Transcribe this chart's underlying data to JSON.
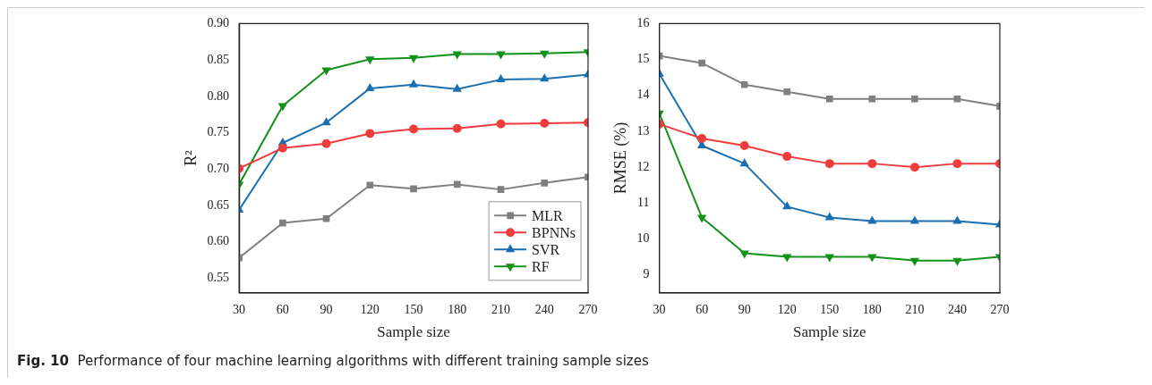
{
  "chart_data": [
    {
      "type": "line",
      "xlabel": "Sample size",
      "ylabel": "R²",
      "x": [
        30,
        60,
        90,
        120,
        150,
        180,
        210,
        240,
        270
      ],
      "xlim": [
        30,
        270
      ],
      "xticks": [
        30,
        60,
        90,
        120,
        150,
        180,
        210,
        240,
        270
      ],
      "ylim": [
        0.53,
        0.9
      ],
      "yticks": [
        0.55,
        {
          "value": 0.6,
          "label": "0.60"
        },
        0.65,
        {
          "value": 0.7,
          "label": "0.70"
        },
        0.75,
        {
          "value": 0.8,
          "label": "0.80"
        },
        0.85,
        {
          "value": 0.9,
          "label": "0.90"
        }
      ],
      "legend": "bottom right",
      "grid": false,
      "line_style": "solid",
      "annotations": [
        "Fig. 10  Performance of four machine learning algorithms with different training sample sizes"
      ],
      "series": [
        {
          "name": "MLR",
          "color": "#808080",
          "marker": "square",
          "values": [
            0.578,
            0.626,
            0.632,
            0.678,
            0.673,
            0.679,
            0.672,
            0.681,
            0.689
          ]
        },
        {
          "name": "BPNNs",
          "color": "#f03c3c",
          "marker": "circle",
          "values": [
            0.701,
            0.729,
            0.735,
            0.749,
            0.755,
            0.756,
            0.762,
            0.763,
            0.764
          ]
        },
        {
          "name": "SVR",
          "color": "#1a6fb0",
          "marker": "triangle",
          "values": [
            0.644,
            0.736,
            0.764,
            0.811,
            0.816,
            0.81,
            0.823,
            0.824,
            0.83
          ]
        },
        {
          "name": "RF",
          "color": "#13921a",
          "marker": "triangle_down",
          "values": [
            0.679,
            0.787,
            0.836,
            0.851,
            0.853,
            0.858,
            0.858,
            0.859,
            0.861
          ]
        }
      ]
    },
    {
      "type": "line",
      "xlabel": "Sample size",
      "ylabel": "RMSE (%)",
      "x": [
        30,
        60,
        90,
        120,
        150,
        180,
        210,
        240,
        270
      ],
      "xlim": [
        30,
        270
      ],
      "xticks": [
        30,
        60,
        90,
        120,
        150,
        180,
        210,
        240,
        270
      ],
      "ylim": [
        8.5,
        16
      ],
      "yticks": [
        9,
        10,
        11,
        12,
        13,
        14,
        15,
        16
      ],
      "grid": false,
      "line_style": "solid",
      "series": [
        {
          "color": "#808080",
          "marker": "square",
          "values": [
            15.1,
            14.9,
            14.3,
            14.1,
            13.9,
            13.9,
            13.9,
            13.9,
            13.7
          ]
        },
        {
          "color": "#f03c3c",
          "marker": "circle",
          "values": [
            13.2,
            12.8,
            12.6,
            12.3,
            12.1,
            12.1,
            12.0,
            12.1,
            12.1
          ]
        },
        {
          "color": "#1a6fb0",
          "marker": "triangle",
          "values": [
            14.6,
            12.6,
            12.1,
            10.9,
            10.6,
            10.5,
            10.5,
            10.5,
            10.4
          ]
        },
        {
          "color": "#13921a",
          "marker": "triangle_down",
          "values": [
            13.5,
            10.6,
            9.6,
            9.5,
            9.5,
            9.5,
            9.4,
            9.4,
            9.5
          ]
        }
      ]
    }
  ]
}
